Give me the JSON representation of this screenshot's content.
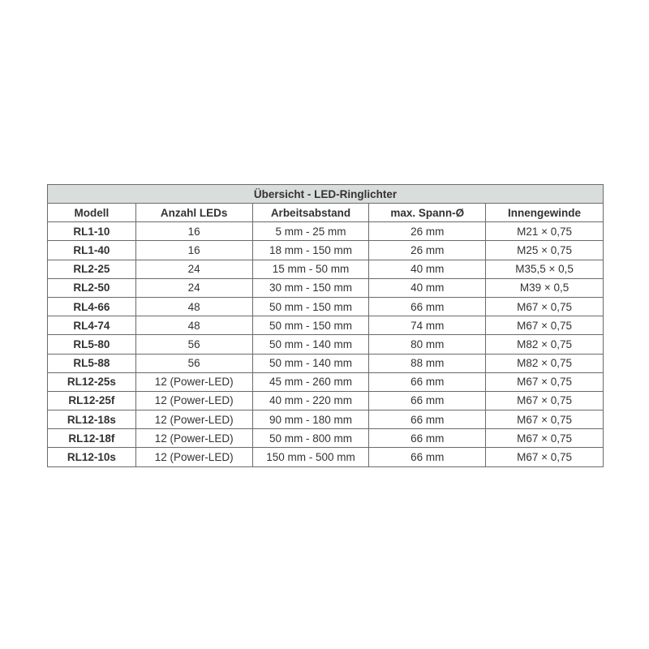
{
  "table": {
    "title": "Übersicht - LED-Ringlichter",
    "headers": [
      "Modell",
      "Anzahl LEDs",
      "Arbeitsabstand",
      "max. Spann-Ø",
      "Innengewinde"
    ],
    "rows": [
      [
        "RL1-10",
        "16",
        "5 mm - 25 mm",
        "26 mm",
        "M21 × 0,75"
      ],
      [
        "RL1-40",
        "16",
        "18 mm - 150 mm",
        "26 mm",
        "M25 × 0,75"
      ],
      [
        "RL2-25",
        "24",
        "15 mm - 50 mm",
        "40 mm",
        "M35,5 × 0,5"
      ],
      [
        "RL2-50",
        "24",
        "30 mm - 150 mm",
        "40 mm",
        "M39 × 0,5"
      ],
      [
        "RL4-66",
        "48",
        "50 mm - 150 mm",
        "66 mm",
        "M67 × 0,75"
      ],
      [
        "RL4-74",
        "48",
        "50 mm - 150 mm",
        "74 mm",
        "M67 × 0,75"
      ],
      [
        "RL5-80",
        "56",
        "50 mm - 140 mm",
        "80 mm",
        "M82 × 0,75"
      ],
      [
        "RL5-88",
        "56",
        "50 mm - 140 mm",
        "88 mm",
        "M82 × 0,75"
      ],
      [
        "RL12-25s",
        "12 (Power-LED)",
        "45 mm - 260 mm",
        "66 mm",
        "M67 × 0,75"
      ],
      [
        "RL12-25f",
        "12 (Power-LED)",
        "40 mm - 220 mm",
        "66 mm",
        "M67 × 0,75"
      ],
      [
        "RL12-18s",
        "12 (Power-LED)",
        "90 mm - 180 mm",
        "66 mm",
        "M67 × 0,75"
      ],
      [
        "RL12-18f",
        "12 (Power-LED)",
        "50 mm - 800 mm",
        "66 mm",
        "M67 × 0,75"
      ],
      [
        "RL12-10s",
        "12 (Power-LED)",
        "150 mm - 500 mm",
        "66 mm",
        "M67 × 0,75"
      ]
    ]
  }
}
